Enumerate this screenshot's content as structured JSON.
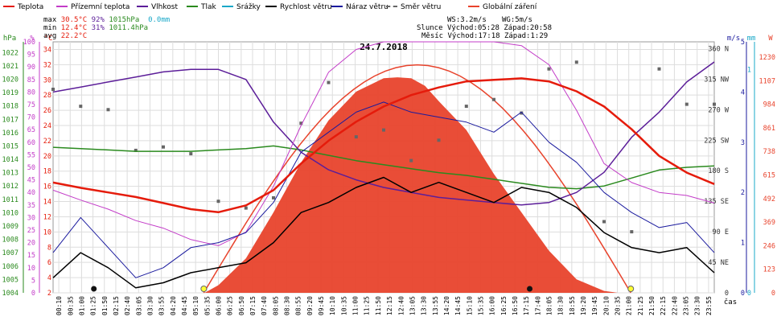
{
  "legend": [
    {
      "label": "Teplota",
      "color": "#e51b0b"
    },
    {
      "label": "Přízemní teplota",
      "color": "#c33cc8"
    },
    {
      "label": "Vlhkost",
      "color": "#5c1e99"
    },
    {
      "label": "Tlak",
      "color": "#2a8a1e"
    },
    {
      "label": "Srážky",
      "color": "#1aa8c8"
    },
    {
      "label": "Rychlost větru",
      "color": "#000000"
    },
    {
      "label": "Náraz větru",
      "color": "#1a1a9e"
    },
    {
      "label": "Směr větru",
      "color": "#666666"
    },
    {
      "label": "Globální záření",
      "color": "#e8432c"
    }
  ],
  "stats": {
    "max_label": "max",
    "max_temp": "30.5°C",
    "max_hum": "92%",
    "max_press": "1015hPa",
    "rain": "0.0mm",
    "min_label": "min",
    "min_temp": "12.4°C",
    "min_hum": "31%",
    "min_press": "1011.4hPa",
    "avg_label": "avg",
    "avg_temp": "22.2°C"
  },
  "info": {
    "ws": "WS:3.2m/s",
    "wg": "WG:5m/s",
    "sun_label": "Slunce",
    "sun_rise": "Východ:05:28",
    "sun_set": "Západ:20:58",
    "moon_label": "Měsíc",
    "moon_rise": "Východ:17:18",
    "moon_set": "Západ:1:29"
  },
  "chart_data": {
    "type": "line",
    "title": "24.7.2018",
    "xlabel": "čas",
    "axis_units": {
      "pressure": "hPa",
      "humidity": "%",
      "temperature": "°C",
      "wind": "m/s",
      "rain": "mm",
      "radiation": "W"
    },
    "x_ticks": [
      "00:10",
      "00:35",
      "01:00",
      "01:25",
      "01:50",
      "02:15",
      "02:40",
      "03:05",
      "03:30",
      "03:55",
      "04:20",
      "04:45",
      "05:10",
      "05:35",
      "06:00",
      "06:25",
      "06:50",
      "07:15",
      "07:40",
      "08:05",
      "08:30",
      "08:55",
      "09:20",
      "09:45",
      "10:10",
      "10:35",
      "11:00",
      "11:25",
      "11:50",
      "12:15",
      "12:40",
      "13:05",
      "13:30",
      "13:55",
      "14:20",
      "14:45",
      "15:10",
      "15:35",
      "16:00",
      "16:25",
      "16:50",
      "17:15",
      "17:40",
      "18:05",
      "18:30",
      "18:55",
      "19:20",
      "19:45",
      "20:10",
      "20:35",
      "21:00",
      "21:25",
      "21:50",
      "22:15",
      "22:40",
      "23:05",
      "23:30",
      "23:55"
    ],
    "pressure_ticks": [
      "1022",
      "1021",
      "1020",
      "1019",
      "1018",
      "1017",
      "1016",
      "1015",
      "1014",
      "1013",
      "1012",
      "1011",
      "1010",
      "1009",
      "1008",
      "1007",
      "1006",
      "1005",
      "1004"
    ],
    "humidity_ticks": [
      "100",
      "95",
      "90",
      "85",
      "80",
      "75",
      "70",
      "65",
      "60",
      "55",
      "50",
      "45",
      "40",
      "35",
      "30",
      "25",
      "20",
      "15",
      "10",
      "5",
      "0"
    ],
    "temp_ticks": [
      "34",
      "32",
      "30",
      "28",
      "26",
      "24",
      "22",
      "20",
      "18",
      "16",
      "14",
      "12",
      "10",
      "8",
      "6",
      "4",
      "2"
    ],
    "wind_ticks": [
      "5",
      "4",
      "3",
      "2",
      "1",
      "0"
    ],
    "rain_ticks": [
      "1",
      "0"
    ],
    "dir_ticks": [
      "360 N",
      "315 NW",
      "270 W",
      "225 SW",
      "180 S",
      "135 SE",
      "90 E",
      "45 NE",
      "0"
    ],
    "rad_ticks": [
      "1230",
      "1107",
      "984",
      "861",
      "738",
      "615",
      "492",
      "369",
      "246",
      "123",
      "0"
    ],
    "ylim": {
      "pressure": [
        1004,
        1022.8
      ],
      "humidity": [
        0,
        100
      ],
      "temperature": [
        2,
        35
      ],
      "wind": [
        0,
        5
      ],
      "radiation": [
        0,
        1310
      ],
      "direction": [
        0,
        370
      ]
    },
    "series": [
      {
        "name": "Teplota",
        "key": "temp",
        "color": "#e51b0b",
        "x": [
          0,
          1,
          2,
          3,
          4,
          5,
          6,
          7,
          8,
          9,
          10,
          11,
          12,
          13,
          14,
          15,
          16,
          17,
          18,
          19,
          20,
          21,
          22,
          23,
          24
        ],
        "values": [
          16.5,
          15.8,
          15.2,
          14.6,
          13.8,
          13.0,
          12.6,
          13.5,
          15.5,
          19.0,
          22.0,
          24.5,
          26.5,
          28.0,
          29.0,
          29.8,
          30.0,
          30.2,
          29.8,
          28.5,
          26.5,
          23.5,
          20.0,
          17.8,
          16.3
        ]
      },
      {
        "name": "Přízemní teplota",
        "key": "ground",
        "color": "#c33cc8",
        "x": [
          0,
          1,
          2,
          3,
          4,
          5,
          6,
          7,
          8,
          9,
          10,
          11,
          12,
          13,
          14,
          15,
          16,
          17,
          18,
          19,
          20,
          21,
          22,
          23,
          24
        ],
        "values": [
          15.5,
          14.2,
          13.0,
          11.5,
          10.5,
          9.0,
          8.2,
          10.0,
          16.0,
          24.0,
          31.0,
          34.0,
          35.0,
          35.0,
          35.0,
          35.0,
          35.0,
          34.5,
          32.0,
          26.0,
          19.0,
          16.5,
          15.2,
          14.8,
          13.8
        ]
      },
      {
        "name": "Vlhkost",
        "key": "hum",
        "color": "#5c1e99",
        "x": [
          0,
          1,
          2,
          3,
          4,
          5,
          6,
          7,
          8,
          9,
          10,
          11,
          12,
          13,
          14,
          15,
          16,
          17,
          18,
          19,
          20,
          21,
          22,
          23,
          24
        ],
        "values": [
          80,
          82,
          84,
          86,
          88,
          89,
          89,
          85,
          68,
          56,
          49,
          45,
          42,
          40,
          38,
          37,
          36,
          35,
          36,
          40,
          48,
          62,
          72,
          84,
          92
        ]
      },
      {
        "name": "Tlak",
        "key": "press",
        "color": "#2a8a1e",
        "x": [
          0,
          1,
          2,
          3,
          4,
          5,
          6,
          7,
          8,
          9,
          10,
          11,
          12,
          13,
          14,
          15,
          16,
          17,
          18,
          19,
          20,
          21,
          22,
          23,
          24
        ],
        "values": [
          1014.9,
          1014.8,
          1014.7,
          1014.6,
          1014.6,
          1014.6,
          1014.7,
          1014.8,
          1015.0,
          1014.7,
          1014.3,
          1013.9,
          1013.6,
          1013.3,
          1013.0,
          1012.8,
          1012.5,
          1012.2,
          1011.9,
          1011.8,
          1012.0,
          1012.6,
          1013.2,
          1013.4,
          1013.5
        ]
      },
      {
        "name": "Rychlost větru",
        "key": "wind",
        "color": "#000000",
        "x": [
          0,
          1,
          2,
          3,
          4,
          5,
          6,
          7,
          8,
          9,
          10,
          11,
          12,
          13,
          14,
          15,
          16,
          17,
          18,
          19,
          20,
          21,
          22,
          23,
          24
        ],
        "values": [
          0.3,
          0.8,
          0.5,
          0.1,
          0.2,
          0.4,
          0.5,
          0.6,
          1.0,
          1.6,
          1.8,
          2.1,
          2.3,
          2.0,
          2.2,
          2.0,
          1.8,
          2.1,
          2.0,
          1.7,
          1.2,
          0.9,
          0.8,
          0.9,
          0.4
        ]
      },
      {
        "name": "Náraz větru",
        "key": "gust",
        "color": "#1a1a9e",
        "x": [
          0,
          1,
          2,
          3,
          4,
          5,
          6,
          7,
          8,
          9,
          10,
          11,
          12,
          13,
          14,
          15,
          16,
          17,
          18,
          19,
          20,
          21,
          22,
          23,
          24
        ],
        "values": [
          0.8,
          1.5,
          0.9,
          0.3,
          0.5,
          0.9,
          1.0,
          1.2,
          1.8,
          2.8,
          3.2,
          3.6,
          3.8,
          3.6,
          3.5,
          3.4,
          3.2,
          3.6,
          3.0,
          2.6,
          2.0,
          1.6,
          1.3,
          1.4,
          0.8
        ]
      },
      {
        "name": "Směr větru",
        "key": "dir",
        "color": "#666666",
        "x": [
          0,
          1,
          2,
          3,
          4,
          5,
          6,
          7,
          8,
          9,
          10,
          11,
          12,
          13,
          14,
          15,
          16,
          17,
          18,
          19,
          20,
          21,
          22,
          23,
          24
        ],
        "values": [
          300,
          275,
          270,
          210,
          215,
          205,
          135,
          125,
          140,
          250,
          310,
          230,
          240,
          195,
          225,
          275,
          285,
          265,
          330,
          340,
          105,
          90,
          330,
          278,
          278
        ]
      },
      {
        "name": "Globální záření",
        "key": "rad",
        "color": "#e8432c",
        "x": [
          5.5,
          6,
          7,
          8,
          9,
          10,
          11,
          12,
          12.5,
          13,
          13.5,
          14,
          15,
          16,
          17,
          18,
          19,
          20,
          20.5
        ],
        "values": [
          0,
          40,
          180,
          420,
          680,
          900,
          1050,
          1120,
          1125,
          1120,
          1080,
          1000,
          850,
          620,
          420,
          220,
          70,
          10,
          0
        ]
      }
    ]
  }
}
